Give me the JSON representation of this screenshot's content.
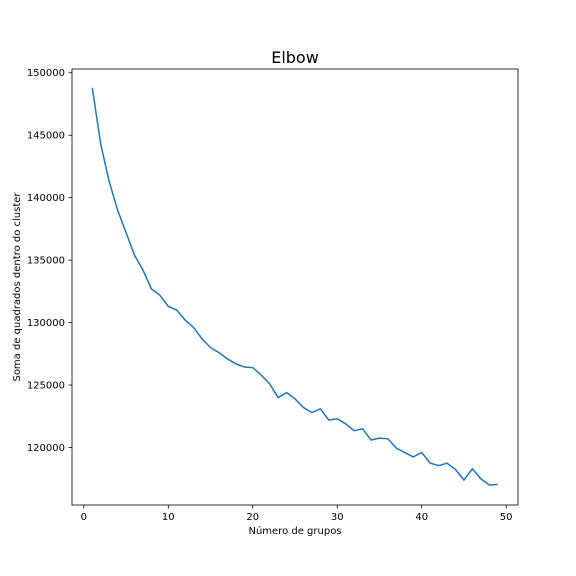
{
  "chart_data": {
    "type": "line",
    "title": "Elbow",
    "xlabel": "Número de grupos",
    "ylabel": "Soma de quadrados dentro do cluster",
    "xlim": [
      -1.4,
      51.4
    ],
    "ylim": [
      115400,
      150300
    ],
    "xticks": [
      0,
      10,
      20,
      30,
      40,
      50
    ],
    "yticks": [
      120000,
      125000,
      130000,
      135000,
      140000,
      145000,
      150000
    ],
    "grid": false,
    "color": "#1f77b4",
    "series": [
      {
        "x": [
          1,
          2,
          3,
          4,
          5,
          6,
          7,
          8,
          9,
          10,
          11,
          12,
          13,
          14,
          15,
          16,
          17,
          18,
          19,
          20,
          21,
          22,
          23,
          24,
          25,
          26,
          27,
          28,
          29,
          30,
          31,
          32,
          33,
          34,
          35,
          36,
          37,
          38,
          39,
          40,
          41,
          42,
          43,
          44,
          45,
          46,
          47,
          48,
          49
        ],
        "values": [
          148800,
          144300,
          141300,
          139000,
          137200,
          135400,
          134200,
          132700,
          132200,
          131300,
          131000,
          130200,
          129600,
          128700,
          128000,
          127600,
          127100,
          126700,
          126450,
          126400,
          125800,
          125100,
          124000,
          124400,
          123900,
          123200,
          122800,
          123100,
          122200,
          122300,
          121900,
          121350,
          121500,
          120600,
          120750,
          120700,
          119950,
          119600,
          119250,
          119600,
          118750,
          118550,
          118750,
          118250,
          117400,
          118300,
          117500,
          117000,
          117050
        ]
      }
    ]
  }
}
